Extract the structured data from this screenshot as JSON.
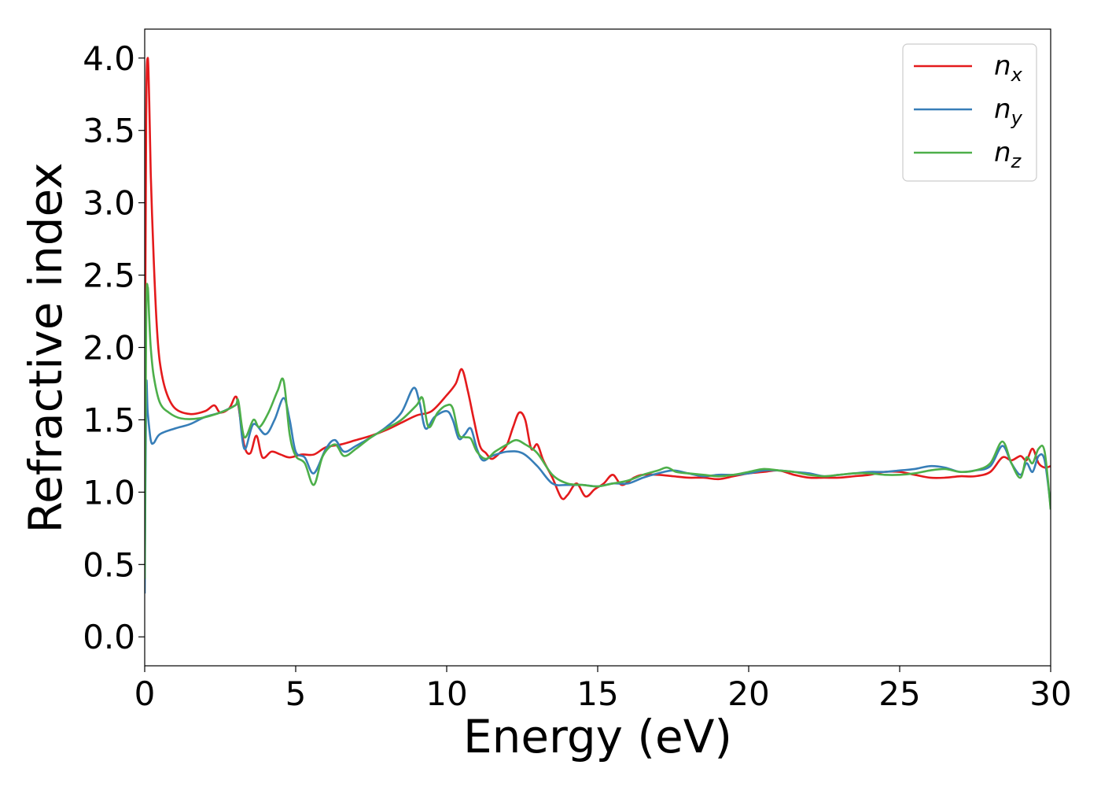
{
  "chart_data": {
    "type": "line",
    "xlabel": "Energy (eV)",
    "ylabel": "Refractive index",
    "xlim": [
      0,
      30
    ],
    "ylim": [
      -0.2,
      4.2
    ],
    "xticks": [
      0,
      5,
      10,
      15,
      20,
      25,
      30
    ],
    "xtick_labels": [
      "0",
      "5",
      "10",
      "15",
      "20",
      "25",
      "30"
    ],
    "yticks": [
      0.0,
      0.5,
      1.0,
      1.5,
      2.0,
      2.5,
      3.0,
      3.5,
      4.0
    ],
    "ytick_labels": [
      "0.0",
      "0.5",
      "1.0",
      "1.5",
      "2.0",
      "2.5",
      "3.0",
      "3.5",
      "4.0"
    ],
    "grid": false,
    "legend_position": "top-right",
    "series": [
      {
        "name": "n",
        "subscript": "x",
        "color": "#e41a1c",
        "x": [
          0,
          0.05,
          0.1,
          0.15,
          0.2,
          0.3,
          0.4,
          0.5,
          0.7,
          1.0,
          1.5,
          2.0,
          2.3,
          2.5,
          2.8,
          3.0,
          3.1,
          3.3,
          3.5,
          3.7,
          3.9,
          4.2,
          4.5,
          4.8,
          5.2,
          5.6,
          6.0,
          6.5,
          7.0,
          7.5,
          8.0,
          8.5,
          9.0,
          9.5,
          10.0,
          10.3,
          10.5,
          10.7,
          10.9,
          11.1,
          11.3,
          11.5,
          11.8,
          12.0,
          12.2,
          12.4,
          12.6,
          12.8,
          13.0,
          13.2,
          13.5,
          13.8,
          14.0,
          14.3,
          14.6,
          14.9,
          15.2,
          15.5,
          15.8,
          16.2,
          16.5,
          17.0,
          17.5,
          18.0,
          18.5,
          19.0,
          19.5,
          20.0,
          20.5,
          21.0,
          21.5,
          22.0,
          22.5,
          23.0,
          23.5,
          24.0,
          24.5,
          25.0,
          25.5,
          26.0,
          26.5,
          27.0,
          27.5,
          28.0,
          28.4,
          28.7,
          29.0,
          29.2,
          29.4,
          29.6,
          29.8,
          30.0
        ],
        "y": [
          1.3,
          3.6,
          4.0,
          3.7,
          3.2,
          2.6,
          2.15,
          1.9,
          1.7,
          1.58,
          1.54,
          1.56,
          1.6,
          1.55,
          1.58,
          1.66,
          1.6,
          1.32,
          1.27,
          1.39,
          1.24,
          1.28,
          1.26,
          1.24,
          1.26,
          1.26,
          1.31,
          1.33,
          1.36,
          1.39,
          1.43,
          1.48,
          1.53,
          1.56,
          1.67,
          1.75,
          1.85,
          1.7,
          1.5,
          1.32,
          1.27,
          1.23,
          1.28,
          1.33,
          1.45,
          1.55,
          1.5,
          1.3,
          1.33,
          1.22,
          1.1,
          0.96,
          0.98,
          1.06,
          0.97,
          1.02,
          1.06,
          1.12,
          1.05,
          1.1,
          1.12,
          1.12,
          1.11,
          1.1,
          1.1,
          1.09,
          1.11,
          1.13,
          1.14,
          1.15,
          1.12,
          1.1,
          1.1,
          1.1,
          1.11,
          1.12,
          1.14,
          1.14,
          1.12,
          1.1,
          1.1,
          1.11,
          1.11,
          1.14,
          1.24,
          1.22,
          1.25,
          1.22,
          1.3,
          1.2,
          1.17,
          1.18
        ]
      },
      {
        "name": "n",
        "subscript": "y",
        "color": "#377eb8",
        "x": [
          0,
          0.05,
          0.1,
          0.2,
          0.3,
          0.5,
          1.0,
          1.5,
          2.0,
          2.5,
          3.0,
          3.1,
          3.3,
          3.6,
          4.0,
          4.3,
          4.6,
          4.8,
          5.0,
          5.3,
          5.6,
          6.0,
          6.3,
          6.6,
          7.0,
          7.5,
          8.0,
          8.5,
          8.9,
          9.1,
          9.3,
          9.6,
          10.0,
          10.2,
          10.4,
          10.6,
          10.8,
          11.0,
          11.2,
          11.5,
          12.0,
          12.5,
          13.0,
          13.5,
          14.0,
          14.5,
          15.0,
          15.5,
          16.0,
          16.5,
          17.0,
          17.5,
          18.0,
          18.5,
          19.0,
          19.5,
          20.0,
          20.5,
          21.0,
          21.5,
          22.0,
          22.5,
          23.0,
          23.5,
          24.0,
          24.5,
          25.0,
          25.5,
          26.0,
          26.5,
          27.0,
          27.5,
          28.0,
          28.4,
          28.7,
          29.0,
          29.2,
          29.4,
          29.6,
          29.8,
          30.0
        ],
        "y": [
          0.3,
          1.7,
          1.55,
          1.36,
          1.34,
          1.4,
          1.44,
          1.47,
          1.52,
          1.55,
          1.6,
          1.62,
          1.3,
          1.47,
          1.4,
          1.5,
          1.65,
          1.5,
          1.28,
          1.24,
          1.13,
          1.3,
          1.36,
          1.28,
          1.32,
          1.38,
          1.45,
          1.55,
          1.72,
          1.62,
          1.44,
          1.52,
          1.56,
          1.5,
          1.37,
          1.4,
          1.44,
          1.3,
          1.22,
          1.25,
          1.28,
          1.27,
          1.18,
          1.06,
          1.05,
          1.05,
          1.04,
          1.06,
          1.06,
          1.1,
          1.13,
          1.15,
          1.13,
          1.11,
          1.12,
          1.12,
          1.13,
          1.15,
          1.15,
          1.14,
          1.13,
          1.11,
          1.12,
          1.13,
          1.14,
          1.14,
          1.15,
          1.16,
          1.18,
          1.17,
          1.14,
          1.15,
          1.18,
          1.32,
          1.2,
          1.12,
          1.2,
          1.14,
          1.25,
          1.22,
          0.9
        ]
      },
      {
        "name": "n",
        "subscript": "z",
        "color": "#4daf4a",
        "x": [
          0,
          0.05,
          0.1,
          0.15,
          0.2,
          0.3,
          0.5,
          0.8,
          1.2,
          1.8,
          2.5,
          3.0,
          3.1,
          3.3,
          3.6,
          3.8,
          4.1,
          4.4,
          4.6,
          4.8,
          5.0,
          5.3,
          5.6,
          5.9,
          6.3,
          6.6,
          7.0,
          7.5,
          8.0,
          8.5,
          9.0,
          9.2,
          9.4,
          9.7,
          10.0,
          10.2,
          10.4,
          10.6,
          10.8,
          11.0,
          11.3,
          11.6,
          12.0,
          12.3,
          12.6,
          13.0,
          13.5,
          14.0,
          14.5,
          15.0,
          15.5,
          16.0,
          16.5,
          17.0,
          17.3,
          17.6,
          18.0,
          18.5,
          19.0,
          19.5,
          20.0,
          20.5,
          21.0,
          21.5,
          22.0,
          22.5,
          23.0,
          23.5,
          24.0,
          24.5,
          25.0,
          25.5,
          26.0,
          26.5,
          27.0,
          27.5,
          28.0,
          28.4,
          28.7,
          29.0,
          29.2,
          29.4,
          29.6,
          29.8,
          30.0
        ],
        "y": [
          0.4,
          2.2,
          2.42,
          2.2,
          2.0,
          1.8,
          1.62,
          1.55,
          1.51,
          1.51,
          1.55,
          1.6,
          1.63,
          1.38,
          1.5,
          1.45,
          1.55,
          1.7,
          1.77,
          1.4,
          1.25,
          1.2,
          1.05,
          1.25,
          1.33,
          1.25,
          1.3,
          1.38,
          1.44,
          1.5,
          1.6,
          1.65,
          1.45,
          1.55,
          1.6,
          1.58,
          1.4,
          1.38,
          1.37,
          1.28,
          1.23,
          1.28,
          1.33,
          1.36,
          1.33,
          1.27,
          1.12,
          1.06,
          1.05,
          1.04,
          1.06,
          1.08,
          1.12,
          1.15,
          1.17,
          1.14,
          1.13,
          1.12,
          1.11,
          1.12,
          1.14,
          1.16,
          1.15,
          1.14,
          1.12,
          1.11,
          1.12,
          1.13,
          1.13,
          1.12,
          1.12,
          1.13,
          1.15,
          1.16,
          1.14,
          1.15,
          1.2,
          1.35,
          1.2,
          1.1,
          1.24,
          1.2,
          1.3,
          1.28,
          0.88
        ]
      }
    ]
  }
}
